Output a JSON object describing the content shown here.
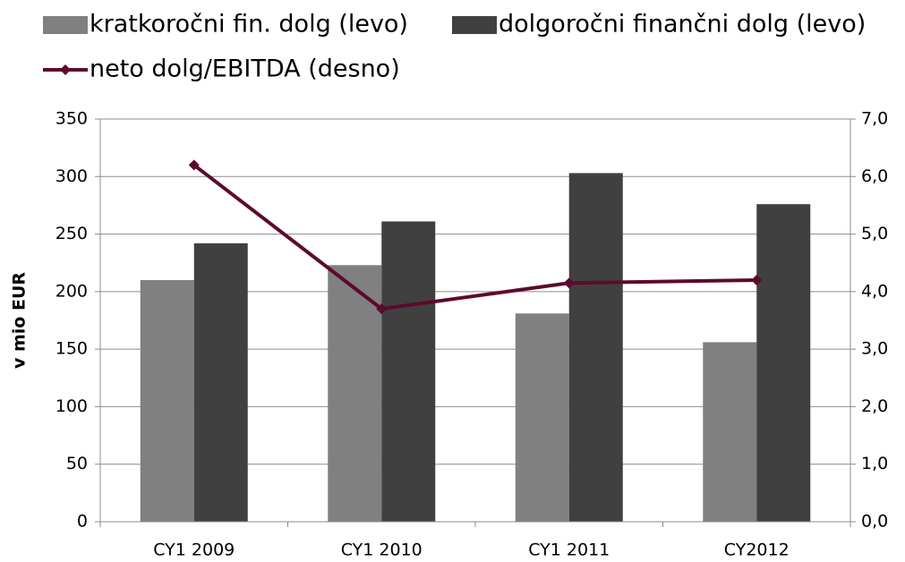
{
  "chart_data": {
    "type": "bar",
    "categories": [
      "CY1 2009",
      "CY1 2010",
      "CY1 2011",
      "CY2012"
    ],
    "series": [
      {
        "name": "kratkoročni fin. dolg (levo)",
        "color": "#808080",
        "values": [
          210,
          223,
          181,
          156
        ]
      },
      {
        "name": "dolgoročni finančni dolg (levo)",
        "color": "#404040",
        "values": [
          242,
          261,
          303,
          276
        ]
      },
      {
        "name": "neto dolg/EBITDA (desno)",
        "color": "#5c0a2e",
        "type": "line",
        "axis": "y2",
        "values": [
          6.2,
          3.7,
          4.15,
          4.2
        ]
      }
    ],
    "y_label": "v mio EUR",
    "ylim": [
      0,
      350
    ],
    "yticks": [
      0,
      50,
      100,
      150,
      200,
      250,
      300,
      350
    ],
    "y2lim": [
      0,
      7
    ],
    "y2ticks": [
      {
        "value": 0,
        "label": "0,0"
      },
      {
        "value": 1,
        "label": "1,0"
      },
      {
        "value": 2,
        "label": "2,0"
      },
      {
        "value": 3,
        "label": "3,0"
      },
      {
        "value": 4,
        "label": "4,0"
      },
      {
        "value": 5,
        "label": "5,0"
      },
      {
        "value": 6,
        "label": "6,0"
      },
      {
        "value": 7,
        "label": "7,0"
      }
    ],
    "grid": true
  }
}
